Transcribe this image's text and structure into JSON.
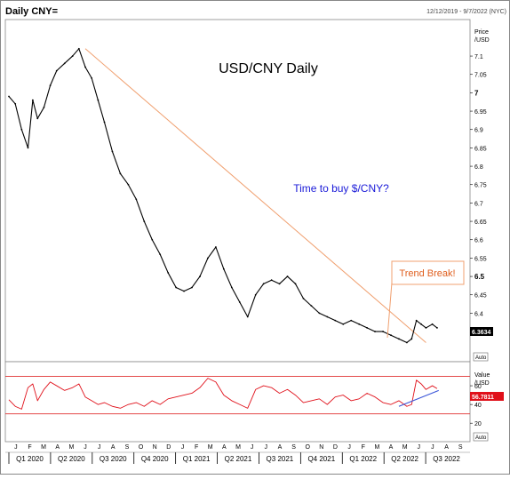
{
  "header": {
    "symbol_label": "Daily CNY=",
    "date_range": "12/12/2019 - 9/7/2022 (NYC)"
  },
  "colors": {
    "price": "#000000",
    "trendline": "#f0a070",
    "rsi": "#e0101a",
    "rsi_band": "#e03030",
    "support": "#3a55d8",
    "last_badge": "#000000",
    "rsi_badge": "#e0101a",
    "annotation_blue": "#1a1ad8",
    "border": "#888888"
  },
  "chart_data": [
    {
      "type": "line",
      "title": "USD/CNY Daily",
      "annotation": "Time to buy $/CNY?",
      "callout": "Trend Break!",
      "y_axis_title": [
        "Price",
        "/USD"
      ],
      "y_ticks": [
        "7.1",
        "7.05",
        "7",
        "6.95",
        "6.9",
        "6.85",
        "6.8",
        "6.75",
        "6.7",
        "6.65",
        "6.6",
        "6.55",
        "6.5",
        "6.45",
        "6.4",
        "6.35"
      ],
      "y_tick_values": [
        7.1,
        7.05,
        7.0,
        6.95,
        6.9,
        6.85,
        6.8,
        6.75,
        6.7,
        6.65,
        6.6,
        6.55,
        6.5,
        6.45,
        6.4,
        6.35
      ],
      "ylim": [
        6.28,
        7.18
      ],
      "last_value": "6.3634",
      "auto_label": "Auto",
      "x_range_months": [
        0,
        28.8
      ],
      "series": [
        {
          "x": [
            0,
            0.4,
            0.8,
            1.2,
            1.5,
            1.8,
            2.2,
            2.6,
            3.0,
            3.5,
            4.0,
            4.4,
            4.8,
            5.2,
            5.6,
            6.0,
            6.5,
            7.0,
            7.5,
            8.0,
            8.5,
            9.0,
            9.5,
            10.0,
            10.5,
            11.0,
            11.5,
            12.0,
            12.5,
            13.0,
            13.5,
            14.0,
            14.5,
            15.0,
            15.5,
            16.0,
            16.5,
            17.0,
            17.5,
            18.0,
            18.5,
            19.0,
            19.5,
            20.0,
            20.5,
            21.0,
            21.5,
            22.0,
            22.5,
            23.0,
            23.5,
            24.0,
            24.5,
            25.0,
            25.3,
            25.6,
            25.9,
            26.2,
            26.6,
            26.9
          ],
          "y": [
            6.99,
            6.97,
            6.9,
            6.85,
            6.98,
            6.93,
            6.96,
            7.02,
            7.06,
            7.08,
            7.1,
            7.12,
            7.07,
            7.04,
            6.98,
            6.92,
            6.84,
            6.78,
            6.75,
            6.71,
            6.65,
            6.6,
            6.56,
            6.51,
            6.47,
            6.46,
            6.47,
            6.5,
            6.55,
            6.58,
            6.52,
            6.47,
            6.43,
            6.39,
            6.45,
            6.48,
            6.49,
            6.48,
            6.5,
            6.48,
            6.44,
            6.42,
            6.4,
            6.39,
            6.38,
            6.37,
            6.38,
            6.37,
            6.36,
            6.35,
            6.35,
            6.34,
            6.33,
            6.32,
            6.33,
            6.38,
            6.37,
            6.36,
            6.37,
            6.36
          ]
        }
      ],
      "trendline": {
        "x": [
          4.8,
          26.2
        ],
        "y": [
          7.12,
          6.32
        ]
      }
    },
    {
      "type": "line",
      "y_axis_title": [
        "Value",
        "/USD"
      ],
      "y_ticks": [
        "60",
        "40",
        "20"
      ],
      "y_tick_values": [
        60,
        40,
        20
      ],
      "ylim": [
        5,
        80
      ],
      "bands": [
        70,
        30
      ],
      "last_value": "56.7811",
      "auto_label": "Auto",
      "series": [
        {
          "x": [
            0,
            0.4,
            0.8,
            1.2,
            1.5,
            1.8,
            2.2,
            2.6,
            3.0,
            3.5,
            4.0,
            4.4,
            4.8,
            5.2,
            5.6,
            6.0,
            6.5,
            7.0,
            7.5,
            8.0,
            8.5,
            9.0,
            9.5,
            10.0,
            10.5,
            11.0,
            11.5,
            12.0,
            12.5,
            13.0,
            13.5,
            14.0,
            14.5,
            15.0,
            15.5,
            16.0,
            16.5,
            17.0,
            17.5,
            18.0,
            18.5,
            19.0,
            19.5,
            20.0,
            20.5,
            21.0,
            21.5,
            22.0,
            22.5,
            23.0,
            23.5,
            24.0,
            24.5,
            25.0,
            25.3,
            25.6,
            25.9,
            26.2,
            26.6,
            26.9
          ],
          "y": [
            45,
            38,
            35,
            58,
            62,
            44,
            56,
            64,
            60,
            55,
            58,
            62,
            48,
            44,
            40,
            42,
            38,
            36,
            40,
            42,
            38,
            44,
            40,
            46,
            48,
            50,
            52,
            58,
            68,
            64,
            50,
            44,
            40,
            36,
            56,
            60,
            58,
            52,
            56,
            50,
            42,
            44,
            46,
            40,
            48,
            50,
            44,
            46,
            52,
            48,
            42,
            40,
            44,
            38,
            40,
            66,
            62,
            56,
            60,
            57
          ]
        }
      ],
      "support": {
        "x": [
          24.5,
          27.0
        ],
        "y": [
          38,
          55
        ]
      }
    }
  ],
  "x_axis": {
    "month_letters": [
      "J",
      "F",
      "M",
      "A",
      "M",
      "J",
      "J",
      "A",
      "S",
      "O",
      "N",
      "D",
      "J",
      "F",
      "M",
      "A",
      "M",
      "J",
      "J",
      "A",
      "S",
      "O",
      "N",
      "D",
      "J",
      "F",
      "M",
      "A",
      "M",
      "J",
      "J",
      "A",
      "S"
    ],
    "quarters": [
      "Q1 2020",
      "Q2 2020",
      "Q3 2020",
      "Q4 2020",
      "Q1 2021",
      "Q2 2021",
      "Q3 2021",
      "Q4 2021",
      "Q1 2022",
      "Q2 2022",
      "Q3 2022"
    ]
  }
}
